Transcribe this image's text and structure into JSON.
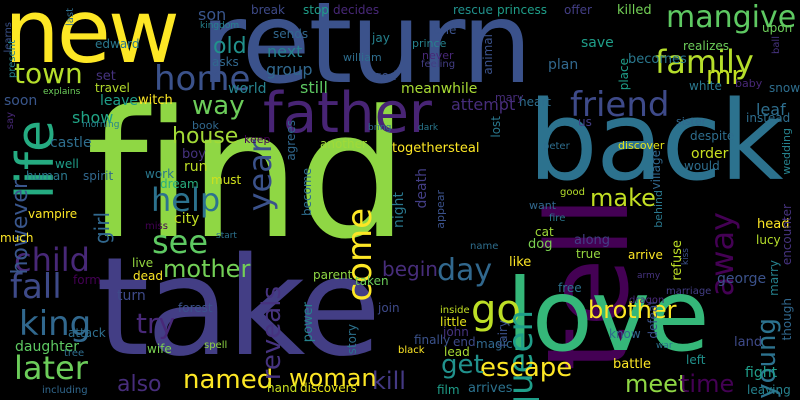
{
  "words": [
    {
      "text": "find",
      "color": "#8fd744"
    },
    {
      "text": "take",
      "color": "#433e85"
    },
    {
      "text": "tell",
      "color": "#440154"
    },
    {
      "text": "back",
      "color": "#2c728e"
    },
    {
      "text": "return",
      "color": "#3b528b"
    },
    {
      "text": "new",
      "color": "#fde725"
    },
    {
      "text": "love",
      "color": "#35b779"
    },
    {
      "text": "father",
      "color": "#482475"
    },
    {
      "text": "life",
      "color": "#25ac82"
    },
    {
      "text": "family",
      "color": "#b5de2b"
    },
    {
      "text": "friend",
      "color": "#3e4a89"
    },
    {
      "text": "home",
      "color": "#3b528b"
    },
    {
      "text": "town",
      "color": "#b5de2b"
    },
    {
      "text": "mangive",
      "color": "#5ec962"
    },
    {
      "text": "child",
      "color": "#482878"
    },
    {
      "text": "see",
      "color": "#5ec962"
    },
    {
      "text": "help",
      "color": "#2c728e"
    },
    {
      "text": "come",
      "color": "#fde725"
    },
    {
      "text": "away",
      "color": "#440154"
    },
    {
      "text": "king",
      "color": "#31688e"
    },
    {
      "text": "fall",
      "color": "#3e4a89"
    },
    {
      "text": "go",
      "color": "#bddf26"
    },
    {
      "text": "queen",
      "color": "#1f9e89"
    },
    {
      "text": "later",
      "color": "#6ccd5a"
    },
    {
      "text": "mother",
      "color": "#73d056"
    },
    {
      "text": "named",
      "color": "#fde725"
    },
    {
      "text": "try",
      "color": "#482878"
    },
    {
      "text": "year",
      "color": "#3b528b"
    },
    {
      "text": "day",
      "color": "#31688e"
    },
    {
      "text": "brother",
      "color": "#fde725"
    },
    {
      "text": "escape",
      "color": "#fde725"
    },
    {
      "text": "meet",
      "color": "#8fd744"
    },
    {
      "text": "time",
      "color": "#440154"
    },
    {
      "text": "kill",
      "color": "#443983"
    },
    {
      "text": "get",
      "color": "#21918c"
    },
    {
      "text": "woman",
      "color": "#fde725"
    },
    {
      "text": "also",
      "color": "#472d7b"
    },
    {
      "text": "make",
      "color": "#c2df23"
    },
    {
      "text": "reveals",
      "color": "#46337f"
    },
    {
      "text": "young",
      "color": "#2c728e"
    },
    {
      "text": "way",
      "color": "#6ccd5a"
    },
    {
      "text": "old",
      "color": "#21918c"
    },
    {
      "text": "house",
      "color": "#a2da37"
    },
    {
      "text": "however",
      "color": "#39568c"
    },
    {
      "text": "girl",
      "color": "#31688e"
    },
    {
      "text": "begin",
      "color": "#472d7b"
    },
    {
      "text": "mr",
      "color": "#c2df23"
    },
    {
      "text": "son",
      "color": "#39568c"
    },
    {
      "text": "next",
      "color": "#26828e"
    },
    {
      "text": "group",
      "color": "#31688e"
    },
    {
      "text": "still",
      "color": "#5ec962"
    },
    {
      "text": "world",
      "color": "#26828e"
    },
    {
      "text": "meanwhile",
      "color": "#a8db34"
    },
    {
      "text": "attempt",
      "color": "#472d7b"
    },
    {
      "text": "save",
      "color": "#1f9e89"
    },
    {
      "text": "plan",
      "color": "#31688e"
    },
    {
      "text": "becomes",
      "color": "#2a788e"
    },
    {
      "text": "leave",
      "color": "#1f9e89"
    },
    {
      "text": "witch",
      "color": "#fde725"
    },
    {
      "text": "show",
      "color": "#20a486"
    },
    {
      "text": "set",
      "color": "#46337f"
    },
    {
      "text": "soon",
      "color": "#39568c"
    },
    {
      "text": "castle",
      "color": "#2e6e8e"
    },
    {
      "text": "boy",
      "color": "#46337f"
    },
    {
      "text": "run",
      "color": "#bddf26"
    },
    {
      "text": "city",
      "color": "#c2df23"
    },
    {
      "text": "order",
      "color": "#c8e020"
    },
    {
      "text": "death",
      "color": "#433e85"
    },
    {
      "text": "night",
      "color": "#2a788e"
    },
    {
      "text": "togethersteal",
      "color": "#fde725"
    },
    {
      "text": "leaf",
      "color": "#2e6e8e"
    },
    {
      "text": "refuse",
      "color": "#bddf26"
    },
    {
      "text": "george",
      "color": "#3b528b"
    },
    {
      "text": "marry",
      "color": "#26828e"
    },
    {
      "text": "head",
      "color": "#fde725"
    },
    {
      "text": "lucy",
      "color": "#b5de2b"
    },
    {
      "text": "like",
      "color": "#fde725"
    },
    {
      "text": "dog",
      "color": "#7ad151"
    },
    {
      "text": "cat",
      "color": "#a0da39"
    },
    {
      "text": "along",
      "color": "#433e85"
    },
    {
      "text": "true",
      "color": "#95d840"
    },
    {
      "text": "arrive",
      "color": "#fde725"
    },
    {
      "text": "fight",
      "color": "#1f9e89"
    },
    {
      "text": "land",
      "color": "#3e4a89"
    },
    {
      "text": "left",
      "color": "#21918c"
    },
    {
      "text": "battle",
      "color": "#fde725"
    },
    {
      "text": "arrives",
      "color": "#2c728e"
    },
    {
      "text": "lead",
      "color": "#a8db34"
    },
    {
      "text": "magic",
      "color": "#31688e"
    },
    {
      "text": "end",
      "color": "#3e4a89"
    },
    {
      "text": "finally",
      "color": "#3b528b"
    },
    {
      "text": "story",
      "color": "#2c728e"
    },
    {
      "text": "power",
      "color": "#26828e"
    },
    {
      "text": "parent",
      "color": "#8fd744"
    },
    {
      "text": "taken",
      "color": "#6ccd5a"
    },
    {
      "text": "forest",
      "color": "#3b528b"
    },
    {
      "text": "turn",
      "color": "#3e4a89"
    },
    {
      "text": "attack",
      "color": "#2e6e8e"
    },
    {
      "text": "daughter",
      "color": "#5ec962"
    },
    {
      "text": "dead",
      "color": "#fde725"
    },
    {
      "text": "live",
      "color": "#95d840"
    },
    {
      "text": "form",
      "color": "#440154"
    },
    {
      "text": "hand",
      "color": "#c8e020"
    },
    {
      "text": "discovers",
      "color": "#e5e419"
    },
    {
      "text": "film",
      "color": "#1f9e89"
    },
    {
      "text": "little",
      "color": "#e5e419"
    },
    {
      "text": "john",
      "color": "#46337f"
    },
    {
      "text": "vampire",
      "color": "#fde725"
    },
    {
      "text": "human",
      "color": "#2a788e"
    },
    {
      "text": "much",
      "color": "#fde725"
    },
    {
      "text": "well",
      "color": "#1f9e89"
    },
    {
      "text": "spirit",
      "color": "#31688e"
    },
    {
      "text": "work",
      "color": "#2a788e"
    },
    {
      "text": "dream",
      "color": "#29af7f"
    },
    {
      "text": "must",
      "color": "#d0e11c"
    },
    {
      "text": "become",
      "color": "#2e6e8e"
    },
    {
      "text": "another",
      "color": "#a0da39"
    },
    {
      "text": "agrees",
      "color": "#31688e"
    },
    {
      "text": "keep",
      "color": "#440154"
    },
    {
      "text": "book",
      "color": "#31688e"
    },
    {
      "text": "edward",
      "color": "#2a788e"
    },
    {
      "text": "travel",
      "color": "#b5de2b"
    },
    {
      "text": "asks",
      "color": "#31688e"
    },
    {
      "text": "sends",
      "color": "#31688e"
    },
    {
      "text": "william",
      "color": "#2e6e8e"
    },
    {
      "text": "jay",
      "color": "#26828e"
    },
    {
      "text": "god",
      "color": "#3b528b"
    },
    {
      "text": "break",
      "color": "#3e4a89"
    },
    {
      "text": "stop",
      "color": "#1f9e89"
    },
    {
      "text": "decides",
      "color": "#482878"
    },
    {
      "text": "rescue",
      "color": "#21918c"
    },
    {
      "text": "princess",
      "color": "#1f9e89"
    },
    {
      "text": "offer",
      "color": "#433e85"
    },
    {
      "text": "killed",
      "color": "#73d056"
    },
    {
      "text": "upon",
      "color": "#6ccd5a"
    },
    {
      "text": "realizes",
      "color": "#6ccd5a"
    },
    {
      "text": "snow",
      "color": "#2e6e8e"
    },
    {
      "text": "baby",
      "color": "#482878"
    },
    {
      "text": "white",
      "color": "#2a788e"
    },
    {
      "text": "instead",
      "color": "#2e6e8e"
    },
    {
      "text": "wedding",
      "color": "#26828e"
    },
    {
      "text": "encounter",
      "color": "#46337f"
    },
    {
      "text": "though",
      "color": "#31688e"
    },
    {
      "text": "leaving",
      "color": "#26828e"
    },
    {
      "text": "place",
      "color": "#1f9e89"
    },
    {
      "text": "heart",
      "color": "#2e6e8e"
    },
    {
      "text": "animal",
      "color": "#3b528b"
    },
    {
      "text": "prince",
      "color": "#26828e"
    },
    {
      "text": "never",
      "color": "#482878"
    },
    {
      "text": "feeling",
      "color": "#433e85"
    },
    {
      "text": "one",
      "color": "#3b528b"
    },
    {
      "text": "mary",
      "color": "#472d7b"
    },
    {
      "text": "us",
      "color": "#433e85"
    },
    {
      "text": "sister",
      "color": "#31688e"
    },
    {
      "text": "despite",
      "color": "#2e6e8e"
    },
    {
      "text": "lost",
      "color": "#2a788e"
    },
    {
      "text": "peter",
      "color": "#2e6e8e"
    },
    {
      "text": "discover",
      "color": "#e5e419"
    },
    {
      "text": "village",
      "color": "#31688e"
    },
    {
      "text": "would",
      "color": "#2e6e8e"
    },
    {
      "text": "behind",
      "color": "#2a788e"
    },
    {
      "text": "want",
      "color": "#31688e"
    },
    {
      "text": "good",
      "color": "#b5de2b"
    },
    {
      "text": "fire",
      "color": "#2a788e"
    },
    {
      "text": "appear",
      "color": "#3b528b"
    },
    {
      "text": "fairy",
      "color": "#3b528b"
    },
    {
      "text": "name",
      "color": "#2e6e8e"
    },
    {
      "text": "join",
      "color": "#3e4a89"
    },
    {
      "text": "free",
      "color": "#2c728e"
    },
    {
      "text": "know",
      "color": "#31688e"
    },
    {
      "text": "defeat",
      "color": "#3b528b"
    },
    {
      "text": "marriage",
      "color": "#433e85"
    },
    {
      "text": "dragon",
      "color": "#482878"
    },
    {
      "text": "inside",
      "color": "#c2df23"
    },
    {
      "text": "black",
      "color": "#fde725"
    },
    {
      "text": "spell",
      "color": "#8fd744"
    },
    {
      "text": "wife",
      "color": "#7ad151"
    },
    {
      "text": "tree",
      "color": "#2e6e8e"
    },
    {
      "text": "including",
      "color": "#31688e"
    },
    {
      "text": "start",
      "color": "#2c728e"
    },
    {
      "text": "miss",
      "color": "#440154"
    },
    {
      "text": "kingdom",
      "color": "#26828e"
    },
    {
      "text": "learns",
      "color": "#3b528b"
    },
    {
      "text": "present",
      "color": "#26828e"
    },
    {
      "text": "explains",
      "color": "#6ccd5a"
    },
    {
      "text": "say",
      "color": "#482878"
    },
    {
      "text": "morning",
      "color": "#26828e"
    },
    {
      "text": "last",
      "color": "#2e6e8e"
    },
    {
      "text": "army",
      "color": "#46337f"
    },
    {
      "text": "war",
      "color": "#2c728e"
    },
    {
      "text": "kiss",
      "color": "#3b528b"
    },
    {
      "text": "ball",
      "color": "#46337f"
    },
    {
      "text": "dark",
      "color": "#2a788e"
    },
    {
      "text": "bring",
      "color": "#2e6e8e"
    }
  ]
}
